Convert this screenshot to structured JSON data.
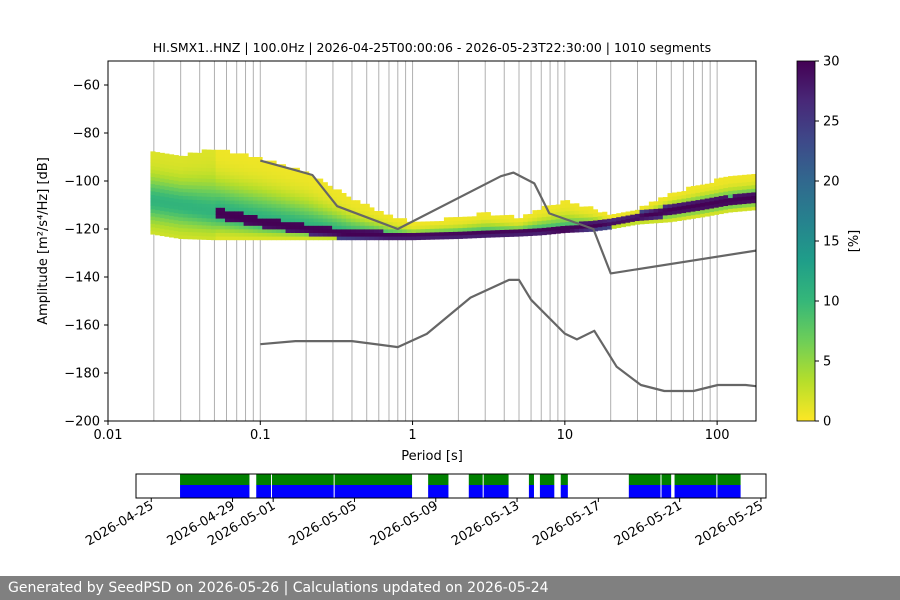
{
  "chart_data": {
    "type": "heatmap",
    "title": "HI.SMX1..HNZ | 100.0Hz | 2026-04-25T00:00:06 - 2026-05-23T22:30:00 | 1010 segments",
    "xlabel": "Period [s]",
    "ylabel": "Amplitude [m²/s⁴/Hz] [dB]",
    "x_scale": "log",
    "xlim": [
      0.01,
      180
    ],
    "ylim": [
      -200,
      -50
    ],
    "x_ticks": [
      {
        "value": 0.01,
        "label": "0.01"
      },
      {
        "value": 0.1,
        "label": "0.1"
      },
      {
        "value": 1,
        "label": "1"
      },
      {
        "value": 10,
        "label": "10"
      },
      {
        "value": 100,
        "label": "100"
      }
    ],
    "y_ticks": [
      {
        "value": -60,
        "label": "−60"
      },
      {
        "value": -80,
        "label": "−80"
      },
      {
        "value": -100,
        "label": "−100"
      },
      {
        "value": -120,
        "label": "−120"
      },
      {
        "value": -140,
        "label": "−140"
      },
      {
        "value": -160,
        "label": "−160"
      },
      {
        "value": -180,
        "label": "−180"
      },
      {
        "value": -200,
        "label": "−200"
      }
    ],
    "colorbar": {
      "label": "[%]",
      "range": [
        0,
        30
      ],
      "ticks": [
        {
          "value": 0,
          "label": "0"
        },
        {
          "value": 5,
          "label": "5"
        },
        {
          "value": 10,
          "label": "10"
        },
        {
          "value": 15,
          "label": "15"
        },
        {
          "value": 20,
          "label": "20"
        },
        {
          "value": 25,
          "label": "25"
        },
        {
          "value": 30,
          "label": "30"
        }
      ],
      "colormap": [
        "#fde725",
        "#b5de2b",
        "#6ece58",
        "#35b779",
        "#1f9e89",
        "#26828e",
        "#31688e",
        "#3e4989",
        "#482878",
        "#440154"
      ]
    },
    "grid": true,
    "line_color": "#666666",
    "density_band": {
      "period": [
        0.019,
        0.03,
        0.05,
        0.1,
        0.2,
        0.4,
        0.7,
        1.0,
        2.0,
        3.0,
        5.0,
        7.0,
        10.0,
        15.0,
        20.0,
        30.0,
        50.0,
        80.0,
        120.0,
        180.0
      ],
      "mode_db": [
        -108,
        -110,
        -113,
        -117,
        -120,
        -122.5,
        -123,
        -123,
        -122.5,
        -122,
        -121.5,
        -121,
        -120.5,
        -119,
        -117,
        -115,
        -112,
        -110,
        -108.5,
        -107
      ],
      "upper_db": [
        -88,
        -90,
        -87,
        -91,
        -97,
        -108,
        -115,
        -118,
        -116,
        -114,
        -116,
        -112,
        -109,
        -112,
        -115,
        -112,
        -106,
        -102,
        -99,
        -98
      ],
      "lower_db": [
        -122,
        -124,
        -124.5,
        -124.5,
        -124.5,
        -124.5,
        -124.5,
        -124.5,
        -124,
        -123.5,
        -123,
        -122.5,
        -121.5,
        -121,
        -120,
        -118,
        -117,
        -115,
        -113,
        -112
      ]
    },
    "series": [
      {
        "period": [
          0.1,
          0.17,
          0.22,
          0.32,
          0.8,
          3.8,
          4.6,
          6.3,
          7.9,
          15.4,
          20.0,
          180.0
        ],
        "values": [
          -91.5,
          -95.5,
          -97.5,
          -110.5,
          -120,
          -98,
          -96.5,
          -101,
          -113.5,
          -120,
          -138.5,
          -129
        ]
      },
      {
        "period": [
          0.1,
          0.17,
          0.4,
          0.8,
          1.24,
          2.4,
          4.3,
          5.0,
          6.0,
          10.0,
          12.0,
          15.6,
          21.9,
          31.6,
          45.0,
          70.0,
          101.0,
          154.0,
          180.0
        ],
        "values": [
          -168,
          -166.7,
          -166.7,
          -169.2,
          -163.7,
          -148.6,
          -141.2,
          -141.2,
          -149.5,
          -163.6,
          -166,
          -162.4,
          -177.4,
          -185,
          -187.5,
          -187.5,
          -185,
          -185,
          -185.5
        ]
      }
    ],
    "timeline": {
      "start": "2026-04-25",
      "end": "2026-05-25",
      "tick_labels": [
        "2026-04-25",
        "2026-04-29",
        "2026-05-01",
        "2026-05-05",
        "2026-05-09",
        "2026-05-13",
        "2026-05-17",
        "2026-05-21",
        "2026-05-25"
      ],
      "tick_dates": [
        "2026-04-25",
        "2026-04-29",
        "2026-05-01",
        "2026-05-05",
        "2026-05-09",
        "2026-05-13",
        "2026-05-17",
        "2026-05-21",
        "2026-05-25"
      ],
      "colors": {
        "data": "#008000",
        "psd": "#0000ff"
      },
      "segments": [
        [
          "2026-04-26T10:00",
          "2026-04-29T20:00"
        ],
        [
          "2026-04-30T04:00",
          "2026-05-07T20:00"
        ],
        [
          "2026-05-08T15:00",
          "2026-05-09T15:00"
        ],
        [
          "2026-05-10T15:00",
          "2026-05-12T14:00"
        ],
        [
          "2026-05-13T14:00",
          "2026-05-13T20:00"
        ],
        [
          "2026-05-14T03:00",
          "2026-05-14T20:00"
        ],
        [
          "2026-05-15T03:00",
          "2026-05-15T12:00"
        ],
        [
          "2026-05-18T12:00",
          "2026-05-20T14:00"
        ],
        [
          "2026-05-20T18:00",
          "2026-05-24T00:00"
        ]
      ],
      "splits": [
        "2026-04-30T22:00",
        "2026-05-04T00:00",
        "2026-05-11T08:00",
        "2026-05-15T03:00",
        "2026-05-20T02:00",
        "2026-05-22T20:00"
      ]
    }
  },
  "footer": {
    "text": "Generated by SeedPSD on 2026-05-26 | Calculations updated on 2026-05-24"
  }
}
